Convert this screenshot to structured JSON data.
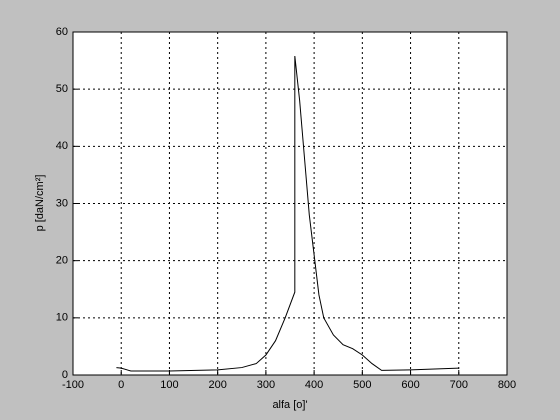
{
  "chart_data": {
    "type": "line",
    "xlabel": "alfa [o]'",
    "ylabel": "p [daN/cm²]",
    "x": [
      -10,
      0,
      20,
      100,
      200,
      250,
      280,
      300,
      320,
      340,
      360,
      360,
      370,
      380,
      390,
      400,
      410,
      420,
      440,
      460,
      480,
      500,
      520,
      540,
      600,
      700
    ],
    "series": [
      {
        "color": "#000000",
        "values": [
          1.3,
          1.2,
          0.7,
          0.7,
          0.9,
          1.3,
          2,
          3.5,
          6,
          10,
          14.5,
          55.8,
          48,
          38,
          28,
          21,
          14,
          10,
          7,
          5.3,
          4.6,
          3.5,
          2,
          0.8,
          0.9,
          1.2
        ]
      }
    ],
    "xlim": [
      -100,
      800
    ],
    "xticks": [
      -100,
      0,
      100,
      200,
      300,
      400,
      500,
      600,
      700,
      800
    ],
    "ylim": [
      0,
      60
    ],
    "yticks": [
      0,
      10,
      20,
      30,
      40,
      50,
      60
    ],
    "grid": true
  }
}
